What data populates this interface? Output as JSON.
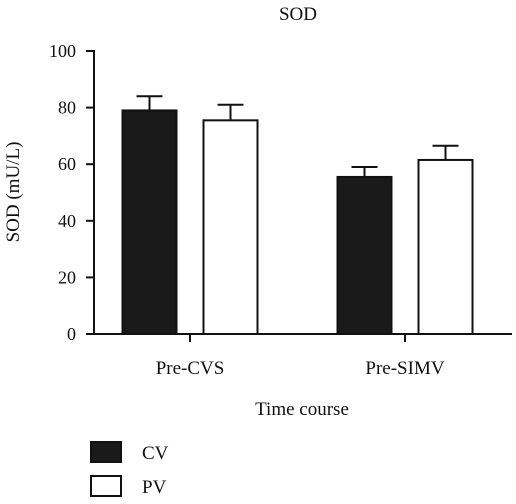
{
  "chart_data": {
    "type": "bar",
    "title": "SOD",
    "xlabel": "Time course",
    "ylabel": "SOD (mU/L)",
    "categories": [
      "Pre-CVS",
      "Pre-SIMV"
    ],
    "ylim": [
      0,
      100
    ],
    "yticks": [
      "0",
      "20",
      "40",
      "60",
      "80",
      "100"
    ],
    "series": [
      {
        "name": "CV",
        "values": [
          79,
          55.5
        ],
        "errors": [
          5,
          3.5
        ],
        "fill": "#1a1a1a"
      },
      {
        "name": "PV",
        "values": [
          75.5,
          61.5
        ],
        "errors": [
          5.5,
          5
        ],
        "fill": "#ffffff"
      }
    ],
    "error_bars": "one-sided (upper)",
    "grid": false,
    "legend_position": "bottom-left"
  }
}
